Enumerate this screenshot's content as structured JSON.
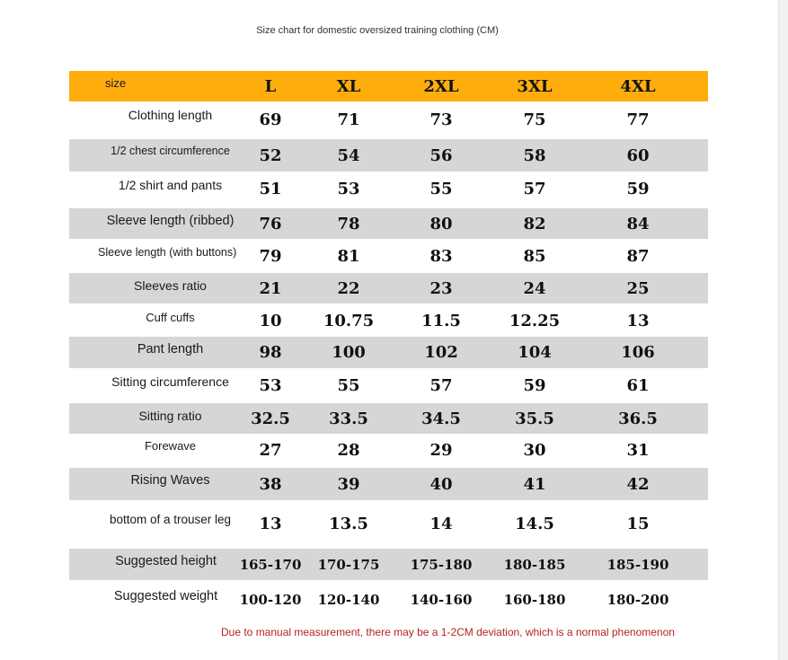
{
  "title": "Size chart for domestic oversized training clothing (CM)",
  "colors": {
    "header_bg": "#ffad0d",
    "shaded_row_bg": "#d6d6d6",
    "footnote_text": "#b2231f"
  },
  "table": {
    "header": {
      "label": "size",
      "sizes": [
        "L",
        "XL",
        "2XL",
        "3XL",
        "4XL"
      ]
    },
    "rows": [
      {
        "label": "Clothing length",
        "values": [
          "69",
          "71",
          "73",
          "75",
          "77"
        ]
      },
      {
        "label": "1/2 chest circumference",
        "values": [
          "52",
          "54",
          "56",
          "58",
          "60"
        ]
      },
      {
        "label": "1/2 shirt and pants",
        "values": [
          "51",
          "53",
          "55",
          "57",
          "59"
        ]
      },
      {
        "label": "Sleeve length (ribbed)",
        "values": [
          "76",
          "78",
          "80",
          "82",
          "84"
        ]
      },
      {
        "label": "Sleeve length (with buttons)",
        "values": [
          "79",
          "81",
          "83",
          "85",
          "87"
        ]
      },
      {
        "label": "Sleeves ratio",
        "values": [
          "21",
          "22",
          "23",
          "24",
          "25"
        ]
      },
      {
        "label": "Cuff cuffs",
        "values": [
          "10",
          "10.75",
          "11.5",
          "12.25",
          "13"
        ]
      },
      {
        "label": "Pant length",
        "values": [
          "98",
          "100",
          "102",
          "104",
          "106"
        ]
      },
      {
        "label": "Sitting circumference",
        "values": [
          "53",
          "55",
          "57",
          "59",
          "61"
        ]
      },
      {
        "label": "Sitting ratio",
        "values": [
          "32.5",
          "33.5",
          "34.5",
          "35.5",
          "36.5"
        ]
      },
      {
        "label": "Forewave",
        "values": [
          "27",
          "28",
          "29",
          "30",
          "31"
        ]
      },
      {
        "label": "Rising Waves",
        "values": [
          "38",
          "39",
          "40",
          "41",
          "42"
        ]
      },
      {
        "label": "bottom of a trouser leg",
        "values": [
          "13",
          "13.5",
          "14",
          "14.5",
          "15"
        ]
      },
      {
        "label": "Suggested height",
        "values": [
          "165-170",
          "170-175",
          "175-180",
          "180-185",
          "185-190"
        ]
      },
      {
        "label": "Suggested weight",
        "values": [
          "100-120",
          "120-140",
          "140-160",
          "160-180",
          "180-200"
        ]
      }
    ]
  },
  "footnote": "Due to manual measurement, there may be a 1-2CM deviation, which is a normal phenomenon"
}
